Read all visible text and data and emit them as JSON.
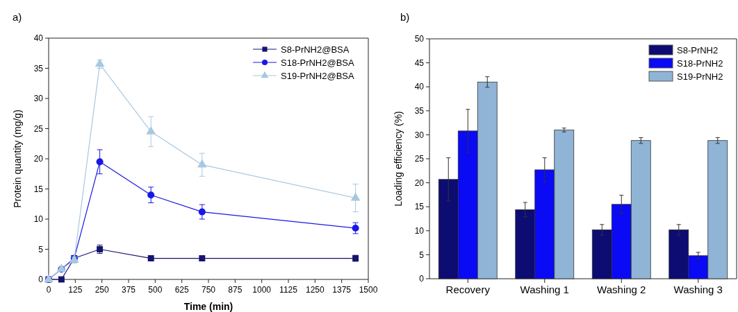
{
  "chart_data": [
    {
      "type": "line",
      "title": "a)",
      "xlabel": "Time (min)",
      "ylabel": "Protein quantity (mg/g)",
      "x": [
        0,
        60,
        120,
        240,
        480,
        720,
        1440
      ],
      "xlim": [
        0,
        1500
      ],
      "xticks": [
        0,
        125,
        250,
        375,
        500,
        625,
        750,
        875,
        1000,
        1125,
        1250,
        1375,
        1500
      ],
      "ylim": [
        0,
        40
      ],
      "yticks": [
        0,
        5,
        10,
        15,
        20,
        25,
        30,
        35,
        40
      ],
      "legend": "top right",
      "grid": false,
      "series": [
        {
          "name": "S8-PrNH2@BSA",
          "color": "#14146e",
          "marker": "square",
          "values": [
            0,
            0,
            3.5,
            5,
            3.5,
            3.5,
            3.5
          ],
          "errors": [
            null,
            null,
            null,
            0.7,
            0.4,
            null,
            0.5
          ]
        },
        {
          "name": "S18-PrNH2@BSA",
          "color": "#1818e6",
          "marker": "circle",
          "values": [
            0,
            1.7,
            3.5,
            19.5,
            14,
            11.2,
            8.5
          ],
          "errors": [
            null,
            null,
            null,
            2,
            1.3,
            1.2,
            0.9
          ]
        },
        {
          "name": "S19-PrNH2@BSA",
          "color": "#a8c8e0",
          "marker": "triangle",
          "values": [
            0,
            1.7,
            3.2,
            35.7,
            24.5,
            19,
            13.5
          ],
          "errors": [
            null,
            null,
            0.5,
            0.7,
            2.5,
            1.9,
            2.3
          ]
        }
      ]
    },
    {
      "type": "bar",
      "title": "b)",
      "ylabel": "Loading efficiency (%)",
      "categories": [
        "Recovery",
        "Washing 1",
        "Washing 2",
        "Washing 3"
      ],
      "ylim": [
        0,
        50
      ],
      "yticks": [
        0,
        5,
        10,
        15,
        20,
        25,
        30,
        35,
        40,
        45,
        50
      ],
      "legend": "top right",
      "grid": false,
      "series": [
        {
          "name": "S8-PrNH2",
          "color": "#0c0c72",
          "values": [
            20.7,
            14.4,
            10.2,
            10.2
          ],
          "errors": [
            4.5,
            1.5,
            1.1,
            1.1
          ]
        },
        {
          "name": "S18-PrNH2",
          "color": "#0a0af5",
          "values": [
            30.8,
            22.7,
            15.5,
            4.8
          ],
          "errors": [
            4.5,
            2.5,
            1.9,
            0.7
          ]
        },
        {
          "name": "S19-PrNH2",
          "color": "#8fb4d6",
          "values": [
            41,
            31,
            28.8,
            28.8
          ],
          "errors": [
            1.1,
            0.4,
            0.6,
            0.6
          ]
        }
      ]
    }
  ]
}
